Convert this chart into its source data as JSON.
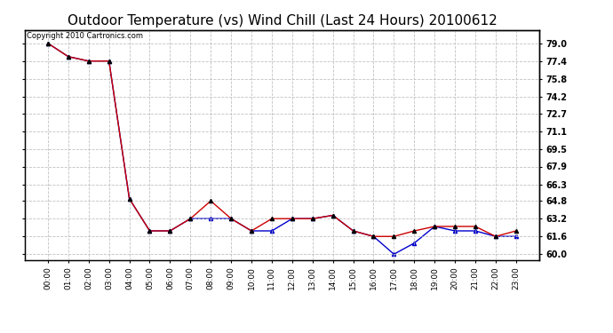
{
  "title": "Outdoor Temperature (vs) Wind Chill (Last 24 Hours) 20100612",
  "copyright": "Copyright 2010 Cartronics.com",
  "x_labels": [
    "00:00",
    "01:00",
    "02:00",
    "03:00",
    "04:00",
    "05:00",
    "06:00",
    "07:00",
    "08:00",
    "09:00",
    "10:00",
    "11:00",
    "12:00",
    "13:00",
    "14:00",
    "15:00",
    "16:00",
    "17:00",
    "18:00",
    "19:00",
    "20:00",
    "21:00",
    "22:00",
    "23:00"
  ],
  "temp_data": [
    79.0,
    77.8,
    77.4,
    77.4,
    65.0,
    62.1,
    62.1,
    63.2,
    64.8,
    63.2,
    62.1,
    63.2,
    63.2,
    63.2,
    63.5,
    62.1,
    61.6,
    61.6,
    62.1,
    62.5,
    62.5,
    62.5,
    61.6,
    62.1
  ],
  "wind_chill_data": [
    79.0,
    77.8,
    77.4,
    77.4,
    65.0,
    62.1,
    62.1,
    63.2,
    63.2,
    63.2,
    62.1,
    62.1,
    63.2,
    63.2,
    63.5,
    62.1,
    61.6,
    60.0,
    61.0,
    62.5,
    62.1,
    62.1,
    61.6,
    61.6
  ],
  "temp_color": "#cc0000",
  "wind_chill_color": "#0000cc",
  "ylim_min": 59.5,
  "ylim_max": 80.2,
  "yticks": [
    60.0,
    61.6,
    63.2,
    64.8,
    66.3,
    67.9,
    69.5,
    71.1,
    72.7,
    74.2,
    75.8,
    77.4,
    79.0
  ],
  "bg_color": "#ffffff",
  "plot_bg_color": "#ffffff",
  "grid_color": "#bbbbbb",
  "title_fontsize": 11,
  "marker_size": 3
}
